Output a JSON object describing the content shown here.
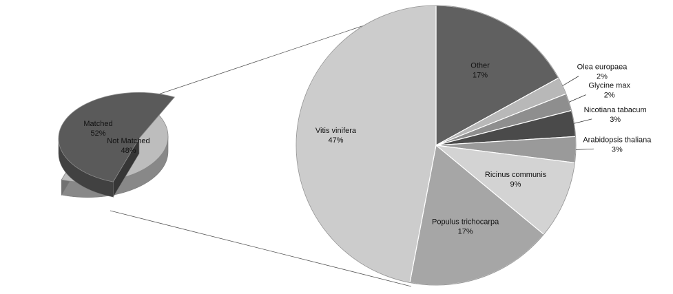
{
  "chart_data": [
    {
      "type": "pie",
      "style": "3d-exploded",
      "slices": [
        {
          "label": "Not Matched",
          "percent_label": "48%",
          "value": 48,
          "color": "#bdbdbd"
        },
        {
          "label": "Matched",
          "percent_label": "52%",
          "value": 52,
          "color": "#5a5a5a"
        }
      ]
    },
    {
      "type": "pie",
      "style": "pie-of-pie-detail",
      "slices": [
        {
          "label": "Other",
          "percent_label": "17%",
          "value": 17,
          "color": "#606060"
        },
        {
          "label": "Olea europaea",
          "percent_label": "2%",
          "value": 2,
          "color": "#b8b8b8"
        },
        {
          "label": "Glycine max",
          "percent_label": "2%",
          "value": 2,
          "color": "#8e8e8e"
        },
        {
          "label": "Nicotiana tabacum",
          "percent_label": "3%",
          "value": 3,
          "color": "#4a4a4a"
        },
        {
          "label": "Arabidopsis thaliana",
          "percent_label": "3%",
          "value": 3,
          "color": "#9a9a9a"
        },
        {
          "label": "Ricinus communis",
          "percent_label": "9%",
          "value": 9,
          "color": "#d3d3d3"
        },
        {
          "label": "Populus trichocarpa",
          "percent_label": "17%",
          "value": 17,
          "color": "#a6a6a6"
        },
        {
          "label": "Vitis vinifera",
          "percent_label": "47%",
          "value": 47,
          "color": "#cccccc"
        }
      ]
    }
  ]
}
